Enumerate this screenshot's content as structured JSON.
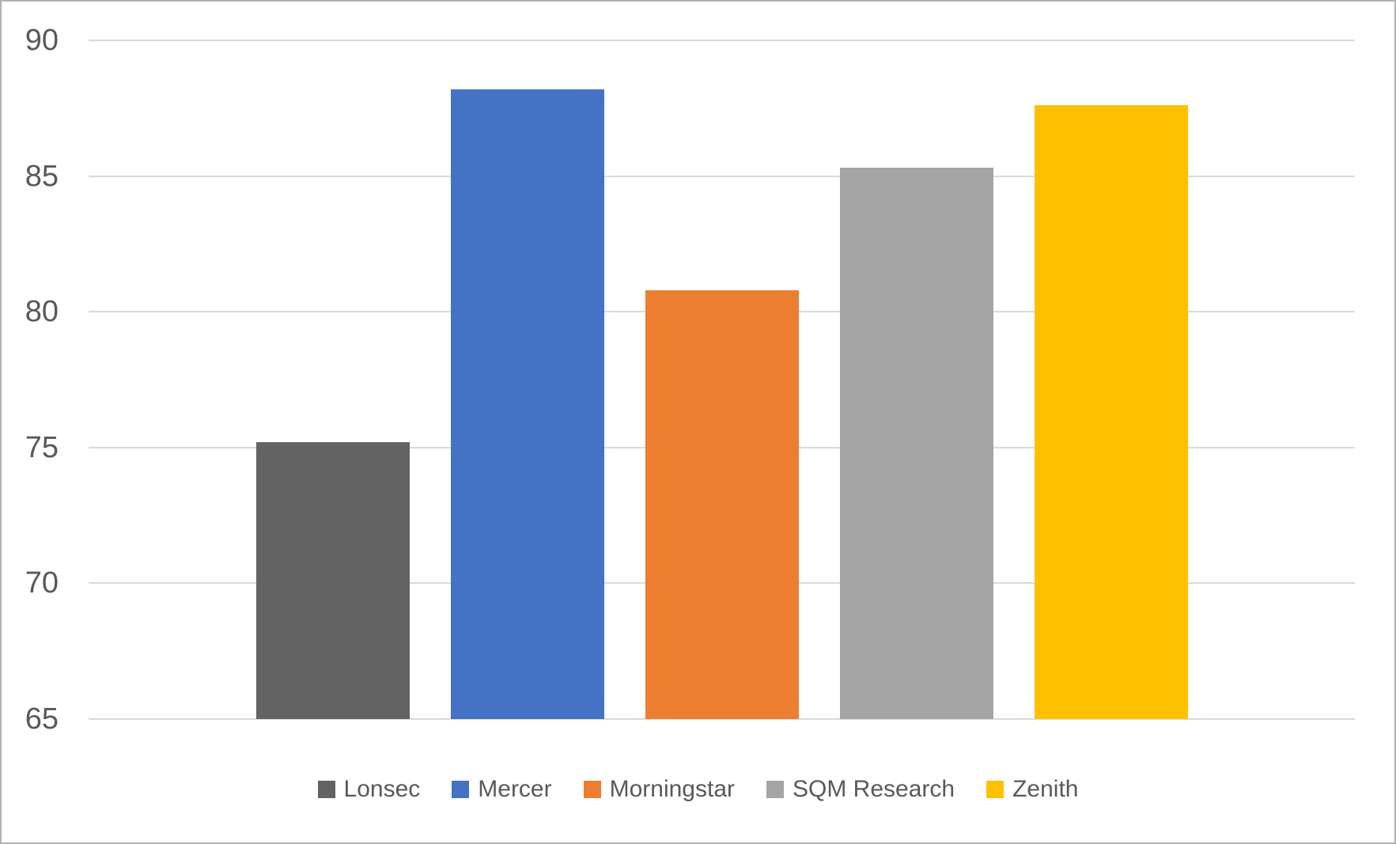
{
  "chart_data": {
    "type": "bar",
    "title": "",
    "xlabel": "",
    "ylabel": "",
    "categories": [
      "Lonsec",
      "Mercer",
      "Morningstar",
      "SQM Research",
      "Zenith"
    ],
    "values": [
      75.2,
      88.2,
      80.8,
      85.3,
      87.6
    ],
    "bar_colors": [
      "#636363",
      "#4472C4",
      "#ED7D31",
      "#A5A5A5",
      "#FFC000"
    ],
    "ylim": [
      65,
      90
    ],
    "yticks": [
      65,
      70,
      75,
      80,
      85,
      90
    ],
    "grid": true,
    "legend_position": "bottom",
    "legend": [
      {
        "label": "Lonsec",
        "color": "#636363"
      },
      {
        "label": "Mercer",
        "color": "#4472C4"
      },
      {
        "label": "Morningstar",
        "color": "#ED7D31"
      },
      {
        "label": "SQM Research",
        "color": "#A5A5A5"
      },
      {
        "label": "Zenith",
        "color": "#FFC000"
      }
    ]
  },
  "style": {
    "background": "#FFFFFF",
    "frame_color": "#B2B2B2",
    "gridline_color": "#D9D9D9",
    "axis_text_color": "#595959",
    "legend_text_color": "#595959"
  }
}
